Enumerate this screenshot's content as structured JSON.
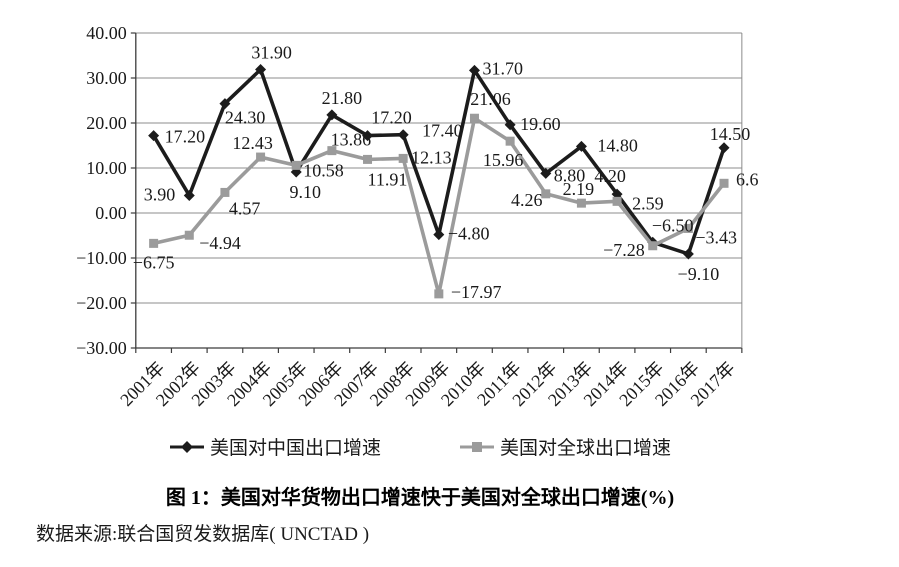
{
  "page": {
    "background": "#ffffff"
  },
  "chart_data": {
    "type": "line",
    "title": "图 1：美国对华货物出口增速快于美国对全球出口增速(%)",
    "source": "数据来源:联合国贸发数据库( UNCTAD )",
    "xlabel": "",
    "ylabel": "",
    "ylim": [
      -30,
      40
    ],
    "grid": true,
    "legend_position": "bottom",
    "categories": [
      "2001年",
      "2002年",
      "2003年",
      "2004年",
      "2005年",
      "2006年",
      "2007年",
      "2008年",
      "2009年",
      "2010年",
      "2011年",
      "2012年",
      "2013年",
      "2014年",
      "2015年",
      "2016年",
      "2017年"
    ],
    "yticks": {
      "values": [
        40,
        30,
        20,
        10,
        0,
        -10,
        -20,
        -30
      ],
      "labels": [
        "40.00",
        "30.00",
        "20.00",
        "10.00",
        "0.00",
        "−10.00",
        "−20.00",
        "−30.00"
      ]
    },
    "series": [
      {
        "name": "美国对中国出口增速",
        "marker": "diamond",
        "color": "#1c1c1c",
        "values": [
          17.2,
          3.9,
          24.3,
          31.9,
          9.1,
          21.8,
          17.2,
          17.4,
          -4.8,
          31.7,
          19.6,
          8.8,
          14.8,
          4.2,
          -6.5,
          -9.1,
          14.5
        ],
        "labels": [
          "17.20",
          "3.90",
          "24.30",
          "31.90",
          "9.10",
          "21.80",
          "17.20",
          "17.40",
          "−4.80",
          "31.70",
          "19.60",
          "8.80",
          "14.80",
          "4.20",
          "−6.50",
          "−9.10",
          "14.50"
        ]
      },
      {
        "name": "美国对全球出口增速",
        "marker": "square",
        "color": "#9b9b9b",
        "values": [
          -6.75,
          -4.94,
          4.57,
          12.43,
          10.58,
          13.86,
          11.91,
          12.13,
          -17.97,
          21.06,
          15.96,
          4.26,
          2.19,
          2.59,
          -7.28,
          -3.43,
          6.6
        ],
        "labels": [
          "−6.75",
          "−4.94",
          "4.57",
          "12.43",
          "10.58",
          "13.86",
          "11.91",
          "12.13",
          "−17.97",
          "21.06",
          "15.96",
          "4.26",
          "2.19",
          "2.59",
          "−7.28",
          "−3.43",
          "6.6"
        ]
      }
    ],
    "colors": {
      "gridline": "#8c8c8c",
      "axis": "#3c3c3c",
      "label_text": "#1a1a1a"
    }
  }
}
